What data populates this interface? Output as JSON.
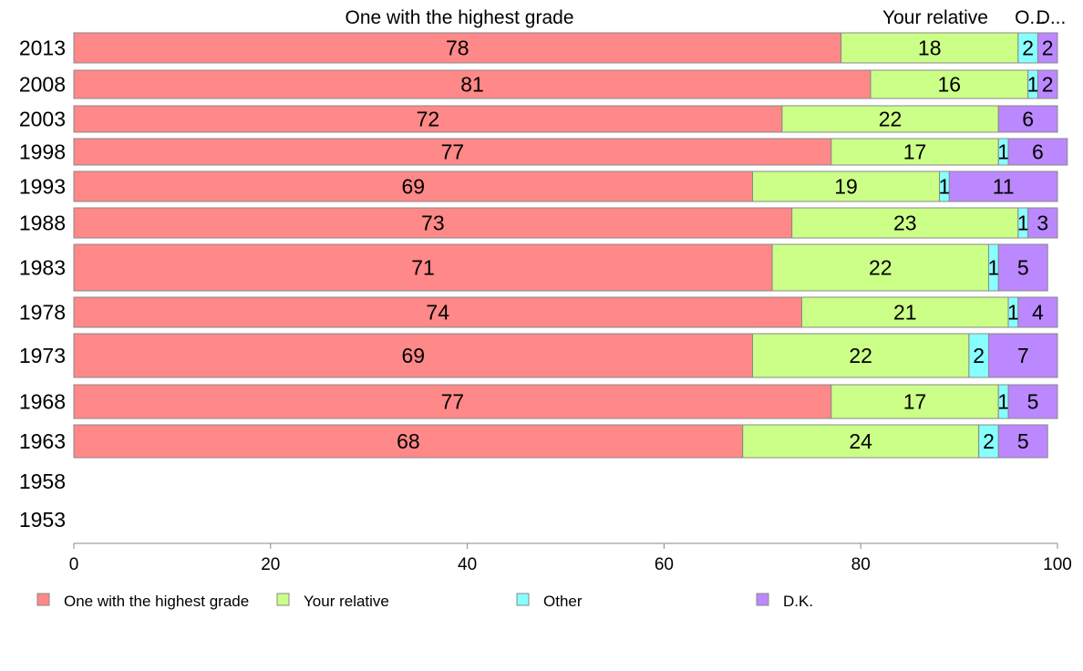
{
  "chart_data": {
    "type": "bar",
    "orientation": "horizontal",
    "stacked": true,
    "categories": [
      "2013",
      "2008",
      "2003",
      "1998",
      "1993",
      "1988",
      "1983",
      "1978",
      "1973",
      "1968",
      "1963",
      "1958",
      "1953"
    ],
    "series": [
      {
        "name": "One with the highest grade",
        "color": "#ff8888",
        "values": [
          78,
          81,
          72,
          77,
          69,
          73,
          71,
          74,
          69,
          77,
          68,
          null,
          null
        ]
      },
      {
        "name": "Your relative",
        "color": "#ccff88",
        "values": [
          18,
          16,
          22,
          17,
          19,
          23,
          22,
          21,
          22,
          17,
          24,
          null,
          null
        ]
      },
      {
        "name": "Other",
        "color": "#88ffff",
        "values": [
          2,
          1,
          0,
          1,
          1,
          1,
          1,
          1,
          2,
          1,
          2,
          null,
          null
        ]
      },
      {
        "name": "D.K.",
        "color": "#bb88ff",
        "values": [
          2,
          2,
          6,
          6,
          11,
          3,
          5,
          4,
          7,
          5,
          5,
          null,
          null
        ]
      }
    ],
    "top_labels": [
      "One with the highest grade",
      "Your relative",
      "O...",
      "D..."
    ],
    "xlim": [
      0,
      100
    ],
    "xticks": [
      "0",
      "20",
      "40",
      "60",
      "80",
      "100"
    ],
    "legend_position": "bottom",
    "grid": false
  }
}
